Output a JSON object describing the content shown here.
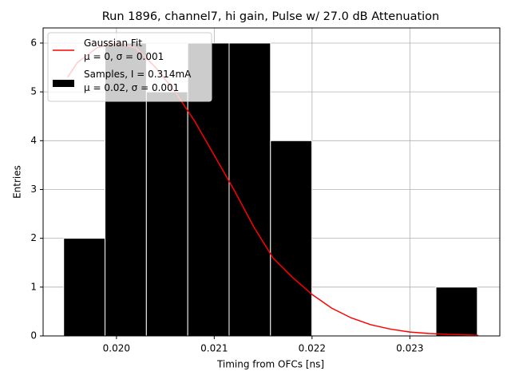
{
  "chart_data": {
    "type": "histogram",
    "title": "Run 1896, channel7, hi gain, Pulse w/ 27.0 dB Attenuation",
    "xlabel": "Timing from OFCs [ns]",
    "ylabel": "Entries",
    "hist_name": "Samples, I = 0.314mA\nμ = 0.02, σ = 0.001",
    "hist_color": "#000000",
    "edge_color": "#ffffff",
    "bins": [
      0.01946,
      0.019883,
      0.020306,
      0.020729,
      0.021152,
      0.021575,
      0.021998,
      0.022421,
      0.022844,
      0.023267,
      0.02369
    ],
    "counts": [
      2,
      6,
      5,
      6,
      6,
      4,
      0,
      0,
      0,
      1
    ],
    "fit": {
      "name": "Gaussian Fit\nμ = 0, σ = 0.001",
      "color": "#ff0000",
      "x": [
        0.0195,
        0.0196,
        0.0198,
        0.02,
        0.0202,
        0.0204,
        0.0206,
        0.0208,
        0.021,
        0.0212,
        0.0214,
        0.0216,
        0.0218,
        0.022,
        0.0222,
        0.0224,
        0.0226,
        0.0228,
        0.023,
        0.0232,
        0.0234,
        0.0236,
        0.0237
      ],
      "values": [
        5.3,
        5.6,
        5.9,
        6.0,
        5.9,
        5.5,
        5.0,
        4.4,
        3.7,
        3.0,
        2.25,
        1.6,
        1.2,
        0.85,
        0.57,
        0.37,
        0.23,
        0.14,
        0.08,
        0.05,
        0.03,
        0.02,
        0.01
      ]
    },
    "xlim": [
      0.01925,
      0.02392
    ],
    "ylim": [
      0,
      6.31
    ],
    "xticks": [
      {
        "value": 0.02,
        "label": "0.020"
      },
      {
        "value": 0.021,
        "label": "0.021"
      },
      {
        "value": 0.022,
        "label": "0.022"
      },
      {
        "value": 0.023,
        "label": "0.023"
      }
    ],
    "yticks": [
      0,
      1,
      2,
      3,
      4,
      5,
      6
    ],
    "grid": true,
    "legend": "upper left"
  }
}
